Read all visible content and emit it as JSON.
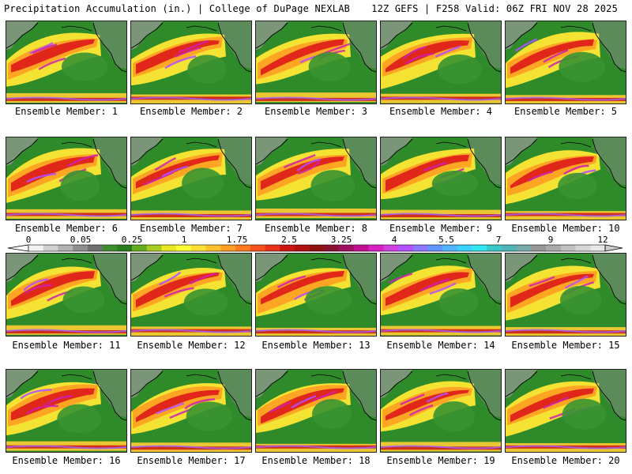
{
  "header": {
    "title_left": "Precipitation Accumulation (in.) | College of DuPage NEXLAB",
    "title_right": "12Z GEFS | F258 Valid: 06Z FRI NOV 28 2025"
  },
  "panels": [
    {
      "label": "Ensemble Member: 1"
    },
    {
      "label": "Ensemble Member: 2"
    },
    {
      "label": "Ensemble Member: 3"
    },
    {
      "label": "Ensemble Member: 4"
    },
    {
      "label": "Ensemble Member: 5"
    },
    {
      "label": "Ensemble Member: 6"
    },
    {
      "label": "Ensemble Member: 7"
    },
    {
      "label": "Ensemble Member: 8"
    },
    {
      "label": "Ensemble Member: 9"
    },
    {
      "label": "Ensemble Member: 10"
    },
    {
      "label": "Ensemble Member: 11"
    },
    {
      "label": "Ensemble Member: 12"
    },
    {
      "label": "Ensemble Member: 13"
    },
    {
      "label": "Ensemble Member: 14"
    },
    {
      "label": "Ensemble Member: 15"
    },
    {
      "label": "Ensemble Member: 16"
    },
    {
      "label": "Ensemble Member: 17"
    },
    {
      "label": "Ensemble Member: 18"
    },
    {
      "label": "Ensemble Member: 19"
    },
    {
      "label": "Ensemble Member: 20"
    }
  ],
  "colorbar": {
    "tick_labels": [
      "0",
      "0.05",
      "0.25",
      "1",
      "1.75",
      "2.5",
      "3.25",
      "4",
      "5.5",
      "7",
      "9",
      "12"
    ],
    "colors": [
      "#f2f2f2",
      "#d2d2d2",
      "#b2b2b2",
      "#8e8e8e",
      "#707070",
      "#3c8c2c",
      "#2a7a1e",
      "#66aa22",
      "#a8cc22",
      "#e8e822",
      "#ffff33",
      "#ffe033",
      "#ffc22a",
      "#ff9e22",
      "#ff7a1e",
      "#f5521e",
      "#e8301a",
      "#cc1414",
      "#b01010",
      "#901010",
      "#881030",
      "#a01060",
      "#c01090",
      "#d820c0",
      "#d040e0",
      "#b050ff",
      "#8c78ff",
      "#6496ff",
      "#50b4ff",
      "#3cd2ff",
      "#30e6f0",
      "#38c8c8",
      "#50b4b4",
      "#78aaaa",
      "#969696",
      "#aaaaaa",
      "#c0c0c0",
      "#d6d6d6",
      "#e8e8e8"
    ]
  }
}
